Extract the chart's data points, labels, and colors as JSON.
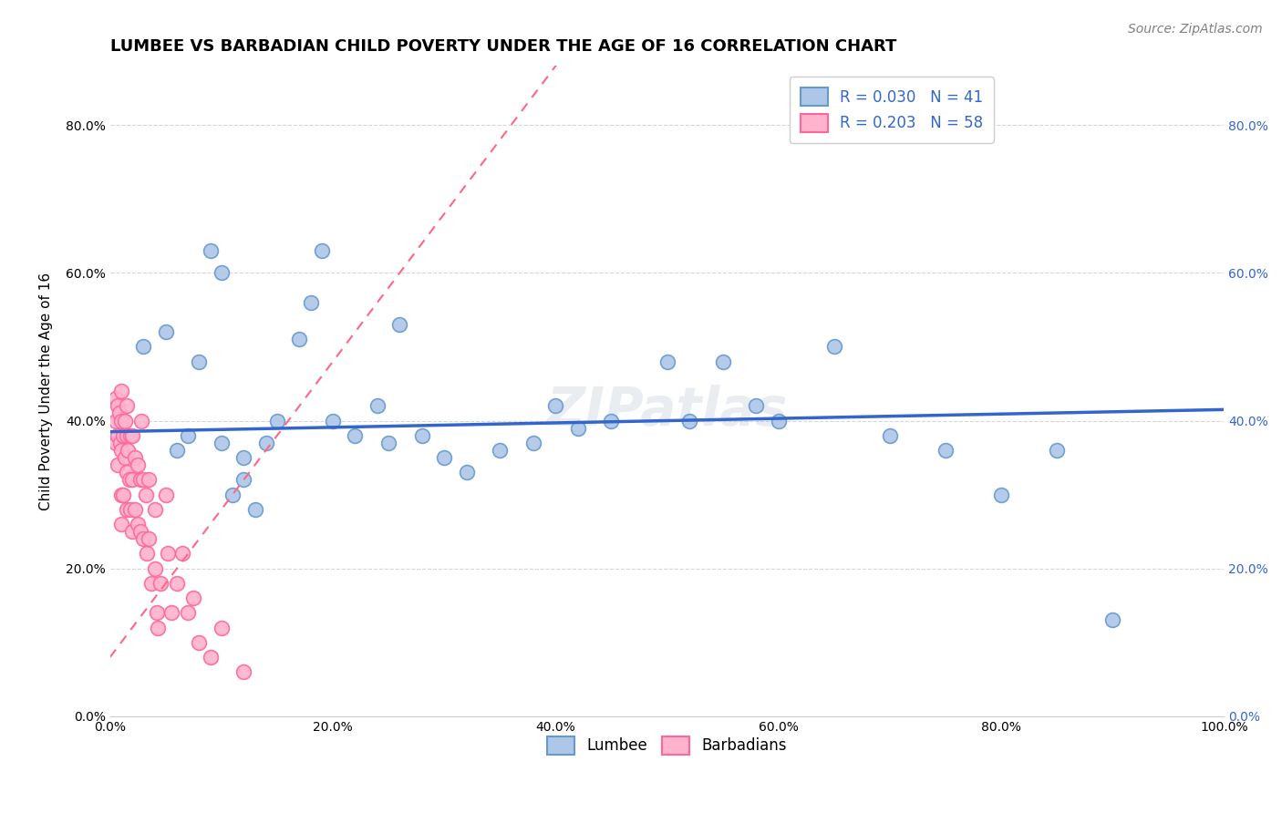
{
  "title": "LUMBEE VS BARBADIAN CHILD POVERTY UNDER THE AGE OF 16 CORRELATION CHART",
  "source": "Source: ZipAtlas.com",
  "ylabel": "Child Poverty Under the Age of 16",
  "xlabel": "",
  "watermark": "ZIPatlas",
  "lumbee_R": 0.03,
  "lumbee_N": 41,
  "barbadian_R": 0.203,
  "barbadian_N": 58,
  "xlim": [
    0.0,
    1.0
  ],
  "ylim": [
    0.0,
    0.88
  ],
  "xticks": [
    0.0,
    0.2,
    0.4,
    0.6,
    0.8,
    1.0
  ],
  "yticks": [
    0.0,
    0.2,
    0.4,
    0.6,
    0.8
  ],
  "lumbee_color": "#6699CC",
  "lumbee_fill": "#AEC6E8",
  "barbadian_color": "#FF6699",
  "barbadian_fill": "#FFB3CC",
  "trend_lumbee_color": "#3366CC",
  "trend_barbadian_color": "#FF6688",
  "lumbee_x": [
    0.03,
    0.05,
    0.06,
    0.07,
    0.08,
    0.09,
    0.1,
    0.1,
    0.11,
    0.12,
    0.12,
    0.13,
    0.14,
    0.15,
    0.17,
    0.18,
    0.19,
    0.2,
    0.22,
    0.24,
    0.25,
    0.26,
    0.28,
    0.3,
    0.32,
    0.35,
    0.38,
    0.4,
    0.42,
    0.45,
    0.5,
    0.52,
    0.55,
    0.58,
    0.6,
    0.65,
    0.7,
    0.75,
    0.8,
    0.85,
    0.9
  ],
  "lumbee_y": [
    0.5,
    0.52,
    0.36,
    0.38,
    0.48,
    0.63,
    0.6,
    0.37,
    0.3,
    0.32,
    0.35,
    0.28,
    0.37,
    0.4,
    0.51,
    0.56,
    0.63,
    0.4,
    0.38,
    0.42,
    0.37,
    0.53,
    0.38,
    0.35,
    0.33,
    0.36,
    0.37,
    0.42,
    0.39,
    0.4,
    0.48,
    0.4,
    0.48,
    0.42,
    0.4,
    0.5,
    0.38,
    0.36,
    0.3,
    0.36,
    0.13
  ],
  "barbadian_x": [
    0.005,
    0.005,
    0.005,
    0.007,
    0.007,
    0.007,
    0.008,
    0.009,
    0.01,
    0.01,
    0.01,
    0.01,
    0.01,
    0.012,
    0.012,
    0.013,
    0.013,
    0.015,
    0.015,
    0.015,
    0.015,
    0.016,
    0.017,
    0.018,
    0.018,
    0.02,
    0.02,
    0.02,
    0.022,
    0.022,
    0.025,
    0.025,
    0.027,
    0.027,
    0.028,
    0.03,
    0.03,
    0.032,
    0.033,
    0.035,
    0.035,
    0.037,
    0.04,
    0.04,
    0.042,
    0.043,
    0.045,
    0.05,
    0.052,
    0.055,
    0.06,
    0.065,
    0.07,
    0.075,
    0.08,
    0.09,
    0.1,
    0.12
  ],
  "barbadian_y": [
    0.43,
    0.4,
    0.37,
    0.42,
    0.38,
    0.34,
    0.41,
    0.37,
    0.44,
    0.4,
    0.36,
    0.3,
    0.26,
    0.38,
    0.3,
    0.4,
    0.35,
    0.42,
    0.38,
    0.33,
    0.28,
    0.36,
    0.32,
    0.38,
    0.28,
    0.38,
    0.32,
    0.25,
    0.35,
    0.28,
    0.34,
    0.26,
    0.32,
    0.25,
    0.4,
    0.32,
    0.24,
    0.3,
    0.22,
    0.32,
    0.24,
    0.18,
    0.28,
    0.2,
    0.14,
    0.12,
    0.18,
    0.3,
    0.22,
    0.14,
    0.18,
    0.22,
    0.14,
    0.16,
    0.1,
    0.08,
    0.12,
    0.06
  ],
  "background_color": "#FFFFFF",
  "grid_color": "#BBBBBB",
  "title_fontsize": 13,
  "label_fontsize": 11,
  "tick_fontsize": 10,
  "legend_fontsize": 12,
  "source_fontsize": 10,
  "watermark_fontsize": 42,
  "watermark_color": "#AABBCC",
  "watermark_alpha": 0.25
}
